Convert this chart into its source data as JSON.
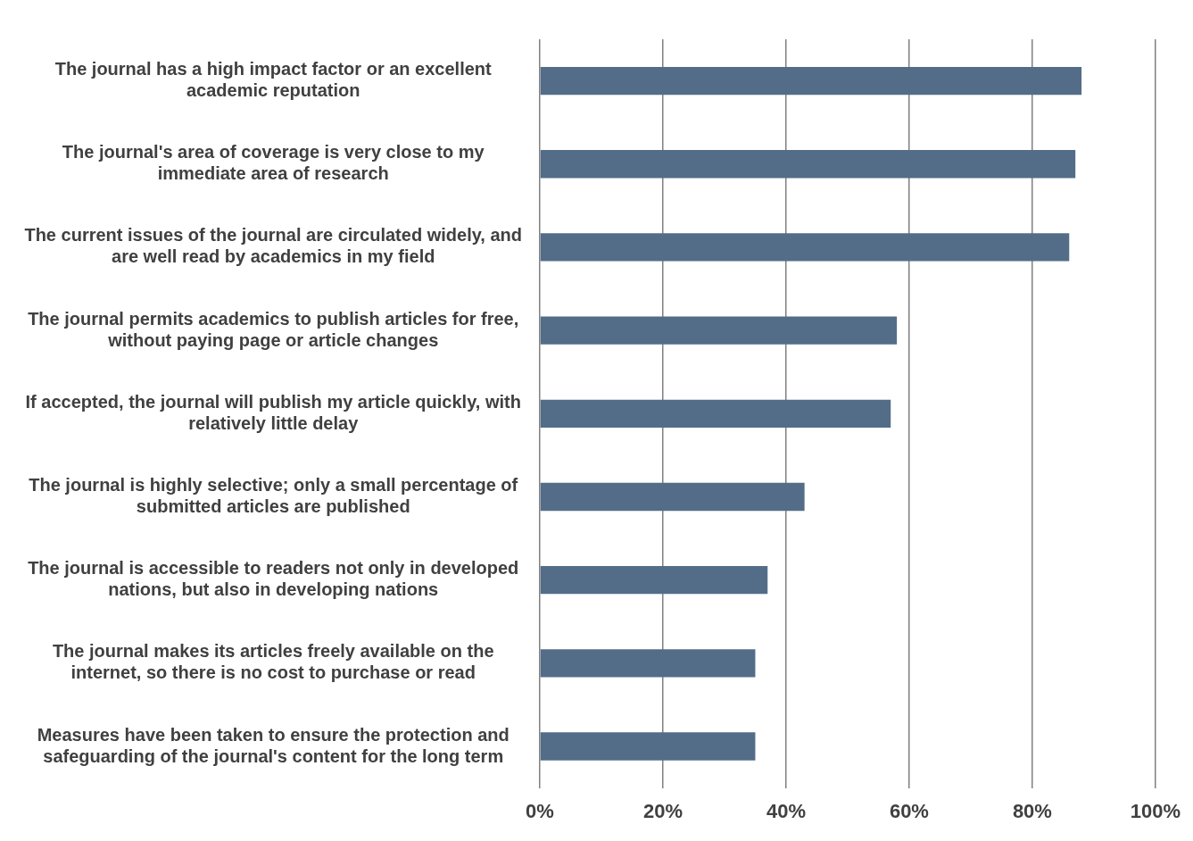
{
  "chart_data": {
    "type": "bar",
    "orientation": "horizontal",
    "categories": [
      "The journal has a high impact factor or an excellent academic reputation",
      "The journal's area of coverage is very close to my immediate area of research",
      "The current issues of the journal are circulated widely, and are well read by academics in my field",
      "The journal permits academics to publish articles for free, without paying page or article changes",
      "If accepted, the journal will publish my article quickly, with relatively little delay",
      "The journal is highly selective; only a small percentage of submitted articles are published",
      "The journal is accessible to readers not only in developed nations, but also in developing nations",
      "The journal makes its articles freely available on the internet, so there is no cost to purchase or read",
      "Measures have been taken to ensure the protection and safeguarding of the journal's content for the long term"
    ],
    "values": [
      88,
      87,
      86,
      58,
      57,
      43,
      37,
      35,
      35
    ],
    "color": "#536d89",
    "xlim": [
      0,
      100
    ],
    "xticks": [
      {
        "value": 0,
        "label": "0%"
      },
      {
        "value": 20,
        "label": "20%"
      },
      {
        "value": 40,
        "label": "40%"
      },
      {
        "value": 60,
        "label": "60%"
      },
      {
        "value": 80,
        "label": "80%"
      },
      {
        "value": 100,
        "label": "100%"
      }
    ],
    "grid": "x"
  }
}
